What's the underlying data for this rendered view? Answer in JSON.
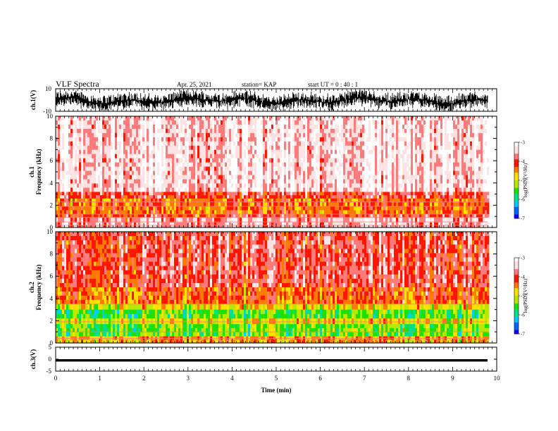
{
  "header": {
    "title": "VLF Spectra",
    "date": "Apr. 25, 2021",
    "station": "station= KAP",
    "start_ut": "start  UT  =   0  : 40 : 1"
  },
  "colors": {
    "frame": "#000000",
    "waveform": "#000000",
    "colormap": [
      "#1a00ff",
      "#0066ff",
      "#00ccff",
      "#00e08a",
      "#20e000",
      "#b8e800",
      "#ffe100",
      "#ff7a00",
      "#ff1500",
      "#ff7b7b",
      "#ffe3e3",
      "#ffffff"
    ]
  },
  "chart_data": [
    {
      "type": "line",
      "name": "ch1-waveform",
      "ylabel": "ch.1(V)",
      "ylim": [
        -10,
        10
      ],
      "y_ticklabels": [
        "10",
        "-10"
      ],
      "xlim": [
        0,
        9.8
      ],
      "amplitude_range": [
        -9.5,
        8.5
      ]
    },
    {
      "type": "heatmap",
      "name": "ch1-spectrogram",
      "ylabel": "ch.1\nFrequency (kHz)",
      "ylim": [
        0,
        10
      ],
      "y_ticks": [
        0,
        2,
        4,
        6,
        8,
        10
      ],
      "xlim": [
        0,
        9.8
      ],
      "colorbar": {
        "label": "log(PSD)(V²/Hz)",
        "range": [
          -7,
          -3
        ],
        "ticks": [
          -7,
          -6,
          -5,
          -4,
          -3
        ]
      },
      "bands": [
        {
          "f_from": 3.2,
          "f_to": 10,
          "level": -3.3
        },
        {
          "f_from": 2.6,
          "f_to": 3.2,
          "level": -3.9
        },
        {
          "f_from": 1.2,
          "f_to": 2.6,
          "level": -4.3
        },
        {
          "f_from": 0.9,
          "f_to": 1.2,
          "level": -4.0
        },
        {
          "f_from": 0.0,
          "f_to": 0.9,
          "level": -3.5
        }
      ],
      "tone_lines_khz": [
        0.2,
        0.5,
        0.9,
        1.2,
        1.9,
        2.3
      ]
    },
    {
      "type": "heatmap",
      "name": "ch2-spectrogram",
      "ylabel": "ch.2\nFrequency (kHz)",
      "ylim": [
        0,
        10
      ],
      "y_ticks": [
        0,
        2,
        4,
        6,
        8,
        10
      ],
      "xlim": [
        0,
        9.8
      ],
      "colorbar": {
        "label": "log(PSD)(V²/Hz)",
        "range": [
          -7,
          -3
        ],
        "ticks": [
          -7,
          -6,
          -5,
          -4,
          -3
        ]
      },
      "bands": [
        {
          "f_from": 5.0,
          "f_to": 10,
          "level": -3.9
        },
        {
          "f_from": 3.5,
          "f_to": 5.0,
          "level": -4.3
        },
        {
          "f_from": 3.0,
          "f_to": 3.5,
          "level": -4.9
        },
        {
          "f_from": 2.2,
          "f_to": 3.0,
          "level": -5.5
        },
        {
          "f_from": 1.7,
          "f_to": 2.2,
          "level": -4.9
        },
        {
          "f_from": 0.6,
          "f_to": 1.7,
          "level": -5.4
        },
        {
          "f_from": 0.0,
          "f_to": 0.6,
          "level": -4.6
        }
      ],
      "tone_lines_khz": [
        0.4,
        1.0,
        1.9,
        3.5
      ]
    },
    {
      "type": "line",
      "name": "ch3-waveform",
      "ylabel": "ch.3(V)",
      "ylim": [
        -5,
        5
      ],
      "y_ticklabels": [
        "5",
        "0",
        "-5"
      ],
      "xlim": [
        0,
        9.8
      ],
      "amplitude_range": [
        -1.0,
        0.0
      ]
    }
  ],
  "x_axis": {
    "label": "Time (min)",
    "range": [
      0,
      10
    ],
    "ticks": [
      "0",
      "1",
      "2",
      "3",
      "4",
      "5",
      "6",
      "7",
      "8",
      "9",
      "10"
    ]
  }
}
